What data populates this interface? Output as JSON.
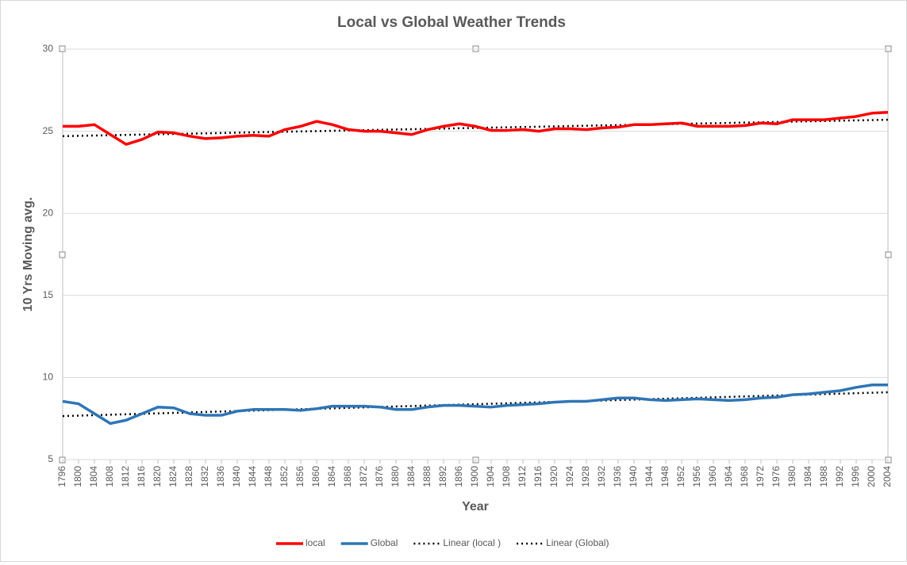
{
  "chart_data": {
    "type": "line",
    "title": "Local vs Global Weather Trends",
    "x_label": "Year",
    "y_label": "10 Yrs Moving avg.",
    "categories": [
      1796,
      1800,
      1804,
      1808,
      1812,
      1816,
      1820,
      1824,
      1828,
      1832,
      1836,
      1840,
      1844,
      1848,
      1852,
      1856,
      1860,
      1864,
      1868,
      1872,
      1876,
      1880,
      1884,
      1888,
      1892,
      1896,
      1900,
      1904,
      1908,
      1912,
      1916,
      1920,
      1924,
      1928,
      1932,
      1936,
      1940,
      1944,
      1948,
      1952,
      1956,
      1960,
      1964,
      1968,
      1972,
      1976,
      1980,
      1984,
      1988,
      1992,
      1996,
      2000,
      2004
    ],
    "xlim": [
      1796,
      2004
    ],
    "ylim": [
      5,
      30
    ],
    "yticks": [
      5,
      10,
      15,
      20,
      25,
      30
    ],
    "grid": true,
    "series": [
      {
        "name": "local",
        "color": "#ff0000",
        "values": [
          25.3,
          25.3,
          25.4,
          24.8,
          24.2,
          24.5,
          24.95,
          24.9,
          24.7,
          24.55,
          24.6,
          24.7,
          24.75,
          24.7,
          25.1,
          25.3,
          25.6,
          25.4,
          25.1,
          25.0,
          25.0,
          24.9,
          24.8,
          25.1,
          25.3,
          25.45,
          25.3,
          25.05,
          25.05,
          25.1,
          25.0,
          25.15,
          25.15,
          25.1,
          25.2,
          25.25,
          25.4,
          25.4,
          25.45,
          25.5,
          25.3,
          25.3,
          25.3,
          25.35,
          25.5,
          25.45,
          25.7,
          25.7,
          25.7,
          25.8,
          25.9,
          26.1,
          26.15
        ]
      },
      {
        "name": "Global",
        "color": "#2e75b6",
        "values": [
          8.55,
          8.4,
          7.8,
          7.2,
          7.4,
          7.8,
          8.2,
          8.15,
          7.8,
          7.7,
          7.7,
          7.95,
          8.05,
          8.05,
          8.05,
          8.0,
          8.1,
          8.25,
          8.25,
          8.25,
          8.2,
          8.05,
          8.05,
          8.2,
          8.3,
          8.3,
          8.25,
          8.2,
          8.3,
          8.35,
          8.4,
          8.5,
          8.55,
          8.55,
          8.65,
          8.75,
          8.75,
          8.65,
          8.6,
          8.65,
          8.7,
          8.65,
          8.6,
          8.65,
          8.75,
          8.8,
          8.95,
          9.0,
          9.1,
          9.2,
          9.4,
          9.55,
          9.55
        ]
      }
    ],
    "trendlines": [
      {
        "name": "Linear (local )",
        "color": "#000000",
        "x": [
          1796,
          2004
        ],
        "values": [
          24.7,
          25.7
        ]
      },
      {
        "name": "Linear (Global)",
        "color": "#000000",
        "x": [
          1796,
          2004
        ],
        "values": [
          7.65,
          9.1
        ]
      }
    ]
  }
}
